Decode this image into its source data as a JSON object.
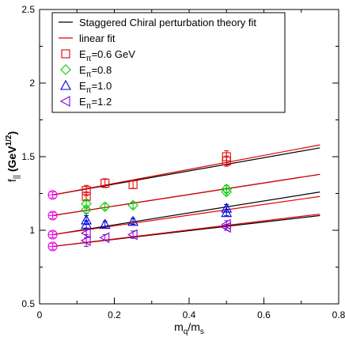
{
  "chart_data": {
    "type": "scatter",
    "xlim": [
      0,
      0.8
    ],
    "ylim": [
      0.5,
      2.5
    ],
    "x_ticks": [
      "0",
      "0.2",
      "0.4",
      "0.6",
      "0.8"
    ],
    "y_ticks": [
      "0.5",
      "1",
      "1.5",
      "2",
      "2.5"
    ],
    "x_ticks_values": [
      0,
      0.2,
      0.4,
      0.6,
      0.8
    ],
    "y_ticks_values": [
      0.5,
      1.0,
      1.5,
      2.0,
      2.5
    ],
    "xlabel": {
      "base": "m",
      "sub1": "q",
      "sep": "/m",
      "sub2": "s"
    },
    "ylabel": {
      "base": "f",
      "sub": "||",
      "unit_open": " (GeV",
      "sup": "1/2",
      "unit_close": ")"
    },
    "legend_position": "top-right",
    "colors": {
      "sxpt": "#000000",
      "linear": "#e00000",
      "s06": "#e00000",
      "s08": "#00cc00",
      "s10": "#0000dd",
      "s12": "#8800cc",
      "chiral": "#ee00ee"
    },
    "legend": [
      {
        "key": "sxpt",
        "kind": "line",
        "color_key": "sxpt",
        "text": "Staggered Chiral perturbation theory fit"
      },
      {
        "key": "linear",
        "kind": "line",
        "color_key": "linear",
        "text": "linear fit"
      },
      {
        "key": "s06",
        "kind": "square",
        "color_key": "s06",
        "base": "E",
        "sub": "π",
        "rest": "=0.6 GeV"
      },
      {
        "key": "s08",
        "kind": "diamond",
        "color_key": "s08",
        "base": "E",
        "sub": "π",
        "rest": "=0.8"
      },
      {
        "key": "s10",
        "kind": "triangle-up",
        "color_key": "s10",
        "base": "E",
        "sub": "π",
        "rest": "=1.0"
      },
      {
        "key": "s12",
        "kind": "triangle-left",
        "color_key": "s12",
        "base": "E",
        "sub": "π",
        "rest": "=1.2"
      }
    ],
    "series": [
      {
        "key": "s06",
        "marker": "square",
        "color_key": "s06",
        "points": [
          {
            "x": 0.125,
            "y": 1.27,
            "err": 0.035
          },
          {
            "x": 0.125,
            "y": 1.23,
            "err": 0.03
          },
          {
            "x": 0.175,
            "y": 1.32,
            "err": 0.03
          },
          {
            "x": 0.25,
            "y": 1.31,
            "err": 0.025
          },
          {
            "x": 0.5,
            "y": 1.5,
            "err": 0.04
          },
          {
            "x": 0.5,
            "y": 1.47,
            "err": 0.035
          }
        ]
      },
      {
        "key": "s08",
        "marker": "diamond",
        "color_key": "s08",
        "points": [
          {
            "x": 0.125,
            "y": 1.18,
            "err": 0.03
          },
          {
            "x": 0.125,
            "y": 1.14,
            "err": 0.025
          },
          {
            "x": 0.175,
            "y": 1.16,
            "err": 0.02
          },
          {
            "x": 0.25,
            "y": 1.17,
            "err": 0.02
          },
          {
            "x": 0.5,
            "y": 1.28,
            "err": 0.025
          },
          {
            "x": 0.5,
            "y": 1.26,
            "err": 0.02
          }
        ]
      },
      {
        "key": "s10",
        "marker": "triangle-up",
        "color_key": "s10",
        "points": [
          {
            "x": 0.125,
            "y": 1.07,
            "err": 0.03
          },
          {
            "x": 0.125,
            "y": 1.04,
            "err": 0.025
          },
          {
            "x": 0.175,
            "y": 1.04,
            "err": 0.02
          },
          {
            "x": 0.25,
            "y": 1.06,
            "err": 0.02
          },
          {
            "x": 0.5,
            "y": 1.15,
            "err": 0.025
          },
          {
            "x": 0.5,
            "y": 1.12,
            "err": 0.02
          }
        ]
      },
      {
        "key": "s12",
        "marker": "triangle-left",
        "color_key": "s12",
        "points": [
          {
            "x": 0.125,
            "y": 0.93,
            "err": 0.04
          },
          {
            "x": 0.125,
            "y": 0.98,
            "err": 0.03
          },
          {
            "x": 0.175,
            "y": 0.95,
            "err": 0.02
          },
          {
            "x": 0.25,
            "y": 0.97,
            "err": 0.025
          },
          {
            "x": 0.5,
            "y": 1.04,
            "err": 0.025
          },
          {
            "x": 0.5,
            "y": 1.02,
            "err": 0.02
          }
        ]
      },
      {
        "key": "chiral",
        "marker": "circle-cross",
        "color_key": "chiral",
        "points": [
          {
            "x": 0.035,
            "y": 1.24,
            "err": 0.02
          },
          {
            "x": 0.035,
            "y": 1.1,
            "err": 0.02
          },
          {
            "x": 0.035,
            "y": 0.97,
            "err": 0.02
          },
          {
            "x": 0.035,
            "y": 0.89,
            "err": 0.02
          }
        ]
      }
    ],
    "fit_lines": [
      {
        "kind": "sxpt",
        "color_key": "sxpt",
        "x0": 0.035,
        "y0": 1.24,
        "x1": 0.75,
        "y1": 1.56
      },
      {
        "kind": "linear",
        "color_key": "linear",
        "x0": 0.035,
        "y0": 1.24,
        "x1": 0.75,
        "y1": 1.58
      },
      {
        "kind": "sxpt",
        "color_key": "sxpt",
        "x0": 0.035,
        "y0": 1.1,
        "x1": 0.75,
        "y1": 1.38
      },
      {
        "kind": "linear",
        "color_key": "linear",
        "x0": 0.035,
        "y0": 1.1,
        "x1": 0.75,
        "y1": 1.38
      },
      {
        "kind": "sxpt",
        "color_key": "sxpt",
        "x0": 0.035,
        "y0": 0.97,
        "x1": 0.75,
        "y1": 1.26
      },
      {
        "kind": "linear",
        "color_key": "linear",
        "x0": 0.035,
        "y0": 0.97,
        "x1": 0.75,
        "y1": 1.23
      },
      {
        "kind": "sxpt",
        "color_key": "sxpt",
        "x0": 0.035,
        "y0": 0.89,
        "x1": 0.75,
        "y1": 1.1
      },
      {
        "kind": "linear",
        "color_key": "linear",
        "x0": 0.035,
        "y0": 0.89,
        "x1": 0.75,
        "y1": 1.11
      }
    ]
  }
}
